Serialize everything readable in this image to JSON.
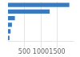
{
  "chart_data": {
    "type": "bar",
    "orientation": "horizontal",
    "categories": [
      null,
      null,
      null,
      null,
      null,
      null
    ],
    "values": [
      1870,
      1270,
      210,
      120,
      80,
      45
    ],
    "color": "#3a7bbf",
    "xlim": [
      0,
      2000
    ],
    "xticks": [
      500,
      1000,
      1500
    ],
    "grid": true,
    "tick_labels": "x"
  }
}
